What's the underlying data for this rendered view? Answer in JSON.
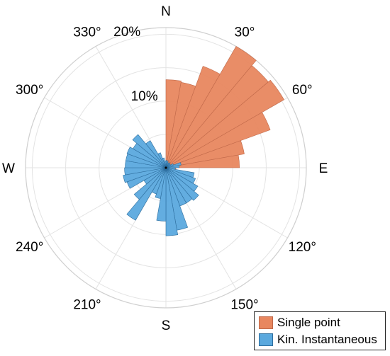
{
  "chart_data": {
    "type": "polar-histogram",
    "direction_labels": [
      {
        "angle": 0,
        "text": "N"
      },
      {
        "angle": 30,
        "text": "30°"
      },
      {
        "angle": 60,
        "text": "60°"
      },
      {
        "angle": 90,
        "text": "E"
      },
      {
        "angle": 120,
        "text": "120°"
      },
      {
        "angle": 150,
        "text": "150°"
      },
      {
        "angle": 180,
        "text": "S"
      },
      {
        "angle": 210,
        "text": "210°"
      },
      {
        "angle": 240,
        "text": "240°"
      },
      {
        "angle": 270,
        "text": "W"
      },
      {
        "angle": 300,
        "text": "300°"
      },
      {
        "angle": 330,
        "text": "330°"
      }
    ],
    "r_ticks": [
      5,
      10,
      15,
      20
    ],
    "r_tick_labels": [
      "10%",
      "20%"
    ],
    "r_tick_label_values": [
      10,
      20
    ],
    "r_max": 21,
    "bin_width_deg": 10,
    "bin_centers_deg": [
      5,
      15,
      25,
      35,
      45,
      55,
      65,
      75,
      85,
      95,
      105,
      115,
      125,
      135,
      145,
      155,
      165,
      175,
      185,
      195,
      205,
      215,
      225,
      235,
      245,
      255,
      265,
      275,
      285,
      295,
      305,
      315,
      325,
      335,
      345,
      355
    ],
    "series": [
      {
        "name": "Single point",
        "color": "#E8875F",
        "edge": "#C0694A",
        "values": [
          13.2,
          13.0,
          16.2,
          21.0,
          20.0,
          20.4,
          16.6,
          11.9,
          11.0,
          1.5,
          0,
          0,
          0,
          0,
          0,
          0,
          0,
          0,
          0,
          0,
          0,
          0,
          0,
          0,
          0,
          0,
          0,
          0,
          0,
          0,
          0,
          0,
          0,
          0,
          0,
          0
        ]
      },
      {
        "name": "Kin. Instantaneous",
        "color": "#5BA9DE",
        "edge": "#2E6E9E",
        "values": [
          1.1,
          1.0,
          0.8,
          0.9,
          0.8,
          0.8,
          1.2,
          2.3,
          2.0,
          1.4,
          4.3,
          4.7,
          5.5,
          6.4,
          6.1,
          6.1,
          9.5,
          10.2,
          8.0,
          4.7,
          4.2,
          9.1,
          6.2,
          3.8,
          6.2,
          6.5,
          6.2,
          6.1,
          6.1,
          6.2,
          5.7,
          6.5,
          4.7,
          2.4,
          1.5,
          1.0
        ]
      }
    ],
    "grid": true,
    "legend_position": "bottom-right"
  }
}
